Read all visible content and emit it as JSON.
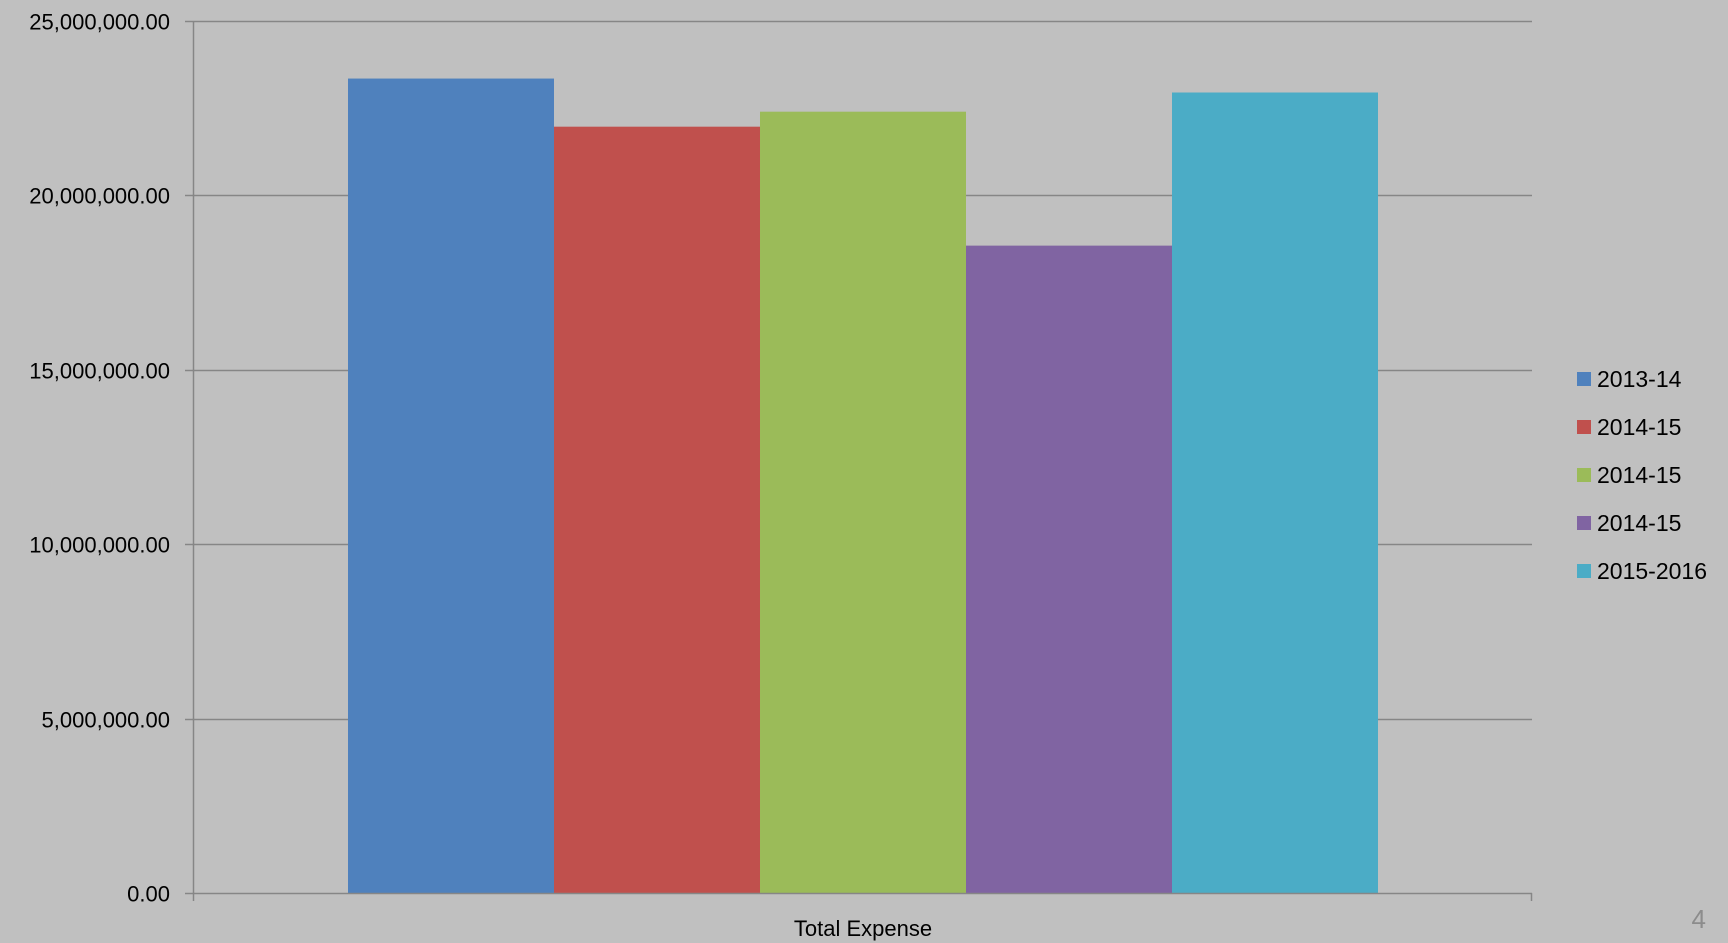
{
  "chart_data": {
    "type": "bar",
    "categories": [
      "Total Expense"
    ],
    "series": [
      {
        "name": "2013-14",
        "values": [
          23350000
        ],
        "color": "#4f81bd"
      },
      {
        "name": "2014-15",
        "values": [
          21970000
        ],
        "color": "#c0504d"
      },
      {
        "name": "2014-15",
        "values": [
          22400000
        ],
        "color": "#9bbb59"
      },
      {
        "name": "2014-15",
        "values": [
          18560000
        ],
        "color": "#8064a2"
      },
      {
        "name": "2015-2016",
        "values": [
          22950000
        ],
        "color": "#4bacc6"
      }
    ],
    "ylim": [
      0,
      25000000
    ],
    "yticks": [
      0,
      5000000,
      10000000,
      15000000,
      20000000,
      25000000
    ],
    "ytick_labels": [
      "0.00",
      "5,000,000.00",
      "10,000,000.00",
      "15,000,000.00",
      "20,000,000.00",
      "25,000,000.00"
    ],
    "grid": true,
    "legend_position": "right",
    "background": "#c0c0c0",
    "gridline_color": "#868686"
  },
  "page_number": "4"
}
